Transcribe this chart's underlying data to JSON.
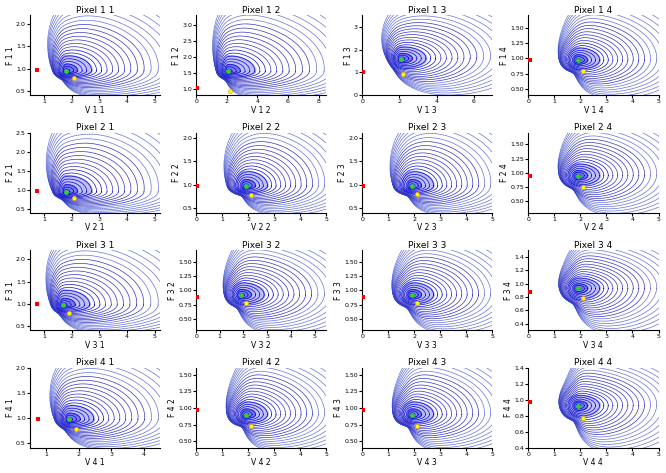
{
  "grid_rows": 4,
  "grid_cols": 4,
  "titles": [
    [
      "Pixel 1 1",
      "Pixel 1 2",
      "Pixel 1 3",
      "Pixel 1 4"
    ],
    [
      "Pixel 2 1",
      "Pixel 2 2",
      "Pixel 2 3",
      "Pixel 2 4"
    ],
    [
      "Pixel 3 1",
      "Pixel 3 2",
      "Pixel 3 3",
      "Pixel 3 4"
    ],
    [
      "Pixel 4 1",
      "Pixel 4 2",
      "Pixel 4 3",
      "Pixel 4 4"
    ]
  ],
  "xlabels": [
    [
      "V 1 1",
      "V 1 2",
      "V 1 3",
      "V 1 4"
    ],
    [
      "V 2 1",
      "V 2 2",
      "V 2 3",
      "V 2 4"
    ],
    [
      "V 3 1",
      "V 3 2",
      "V 3 3",
      "V 3 4"
    ],
    [
      "V 4 1",
      "V 4 2",
      "V 4 3",
      "V 4 4"
    ]
  ],
  "ylabels": [
    [
      "F 1 1",
      "F 1 2",
      "F 1 3",
      "F 1 4"
    ],
    [
      "F 2 1",
      "F 2 2",
      "F 2 3",
      "F 2 4"
    ],
    [
      "F 3 1",
      "F 3 2",
      "F 3 3",
      "F 3 4"
    ],
    [
      "F 4 1",
      "F 4 2",
      "F 4 3",
      "F 4 4"
    ]
  ],
  "xlims": [
    [
      [
        0.5,
        5.2
      ],
      [
        0.0,
        8.5
      ],
      [
        0.0,
        7.0
      ],
      [
        0.0,
        5.0
      ]
    ],
    [
      [
        0.5,
        5.2
      ],
      [
        0.0,
        5.0
      ],
      [
        0.0,
        5.0
      ],
      [
        0.0,
        5.0
      ]
    ],
    [
      [
        0.5,
        5.2
      ],
      [
        0.0,
        5.5
      ],
      [
        0.0,
        5.0
      ],
      [
        0.0,
        5.0
      ]
    ],
    [
      [
        0.5,
        4.5
      ],
      [
        0.0,
        5.0
      ],
      [
        0.0,
        5.0
      ],
      [
        0.0,
        5.0
      ]
    ]
  ],
  "ylims": [
    [
      [
        0.4,
        2.2
      ],
      [
        0.8,
        3.3
      ],
      [
        0.0,
        3.5
      ],
      [
        0.4,
        1.7
      ]
    ],
    [
      [
        0.4,
        2.5
      ],
      [
        0.4,
        2.1
      ],
      [
        0.4,
        2.1
      ],
      [
        0.3,
        1.7
      ]
    ],
    [
      [
        0.4,
        2.2
      ],
      [
        0.3,
        1.7
      ],
      [
        0.3,
        1.7
      ],
      [
        0.3,
        1.5
      ]
    ],
    [
      [
        0.4,
        2.0
      ],
      [
        0.4,
        1.6
      ],
      [
        0.4,
        1.6
      ],
      [
        0.4,
        1.4
      ]
    ]
  ],
  "equilibria_green": [
    [
      [
        1.8,
        0.95
      ],
      [
        2.1,
        1.55
      ],
      [
        2.1,
        1.6
      ],
      [
        1.9,
        0.97
      ]
    ],
    [
      [
        1.8,
        0.95
      ],
      [
        1.9,
        0.97
      ],
      [
        1.9,
        0.97
      ],
      [
        1.9,
        0.95
      ]
    ],
    [
      [
        1.7,
        0.97
      ],
      [
        1.9,
        0.92
      ],
      [
        1.9,
        0.92
      ],
      [
        1.9,
        0.93
      ]
    ],
    [
      [
        1.7,
        0.97
      ],
      [
        1.9,
        0.9
      ],
      [
        1.9,
        0.9
      ],
      [
        1.9,
        0.93
      ]
    ]
  ],
  "equilibria_yellow": [
    [
      [
        2.1,
        0.78
      ],
      [
        2.2,
        0.93
      ],
      [
        2.2,
        0.93
      ],
      [
        2.1,
        0.8
      ]
    ],
    [
      [
        2.1,
        0.78
      ],
      [
        2.1,
        0.78
      ],
      [
        2.1,
        0.8
      ],
      [
        2.1,
        0.75
      ]
    ],
    [
      [
        1.9,
        0.78
      ],
      [
        2.1,
        0.78
      ],
      [
        2.1,
        0.78
      ],
      [
        2.1,
        0.78
      ]
    ],
    [
      [
        1.9,
        0.78
      ],
      [
        2.1,
        0.73
      ],
      [
        2.1,
        0.73
      ],
      [
        2.1,
        0.77
      ]
    ]
  ],
  "equilibria_red": [
    [
      [
        0.75,
        0.97
      ],
      [
        0.08,
        1.02
      ],
      [
        0.05,
        1.0
      ],
      [
        0.05,
        0.97
      ]
    ],
    [
      [
        0.75,
        0.97
      ],
      [
        0.05,
        0.97
      ],
      [
        0.05,
        0.97
      ],
      [
        0.05,
        0.95
      ]
    ],
    [
      [
        0.75,
        1.0
      ],
      [
        0.05,
        0.88
      ],
      [
        0.05,
        0.88
      ],
      [
        0.05,
        0.88
      ]
    ],
    [
      [
        0.75,
        0.97
      ],
      [
        0.05,
        0.97
      ],
      [
        0.05,
        0.97
      ],
      [
        0.05,
        0.97
      ]
    ]
  ],
  "line_color": "#2222bb",
  "background_color": "#ffffff"
}
